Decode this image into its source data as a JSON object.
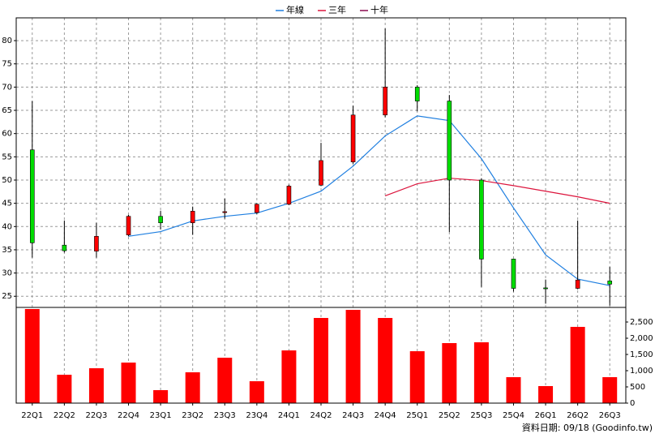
{
  "chart_data": {
    "type": "candlestick",
    "categories": [
      "22Q1",
      "22Q2",
      "22Q3",
      "22Q4",
      "23Q1",
      "23Q2",
      "23Q3",
      "23Q4",
      "24Q1",
      "24Q2",
      "24Q3",
      "24Q4",
      "25Q1",
      "25Q2",
      "25Q3",
      "25Q4",
      "26Q1",
      "26Q2",
      "26Q3"
    ],
    "open": [
      56.5,
      36,
      34.7,
      38.2,
      42.2,
      40.8,
      43,
      43,
      44.8,
      48.9,
      53.9,
      64,
      70,
      67,
      50,
      33,
      26.8,
      26.7,
      28.3
    ],
    "high": [
      67,
      41.3,
      40.8,
      42.5,
      43.4,
      44.3,
      46,
      45,
      49,
      58,
      66,
      82.6,
      70.4,
      68.3,
      50.4,
      33,
      28.6,
      41.3,
      31.3
    ],
    "low": [
      33.3,
      34.4,
      33.3,
      37.9,
      39.4,
      38.2,
      41.7,
      42.7,
      44.6,
      48.7,
      53.5,
      63.5,
      64.8,
      38.8,
      27,
      26,
      23.4,
      26.5,
      23
    ],
    "close": [
      36.5,
      34.8,
      37.9,
      42.2,
      40.8,
      43.3,
      43.2,
      44.8,
      48.7,
      54.2,
      64,
      70,
      67,
      50,
      33,
      26.7,
      26.6,
      28.5,
      27.6
    ],
    "up_color": "#ff0000",
    "down_color": "#00dd00",
    "series": [
      {
        "name": "年線",
        "color": "#1f7fe0",
        "values": [
          null,
          null,
          null,
          37.9,
          38.9,
          41.2,
          42.2,
          42.9,
          45,
          47.6,
          53,
          59.5,
          63.8,
          62.8,
          54.6,
          44,
          33.9,
          28.7,
          27.3
        ]
      },
      {
        "name": "三年",
        "color": "#dc143c",
        "values": [
          null,
          null,
          null,
          null,
          null,
          null,
          null,
          null,
          null,
          null,
          null,
          46.6,
          49.2,
          50.4,
          49.9,
          48.8,
          47.6,
          46.4,
          45
        ]
      },
      {
        "name": "十年",
        "color": "#8b0a50",
        "values": [
          null,
          null,
          null,
          null,
          null,
          null,
          null,
          null,
          null,
          null,
          null,
          null,
          null,
          null,
          null,
          null,
          null,
          null,
          null
        ]
      }
    ],
    "ylim": [
      22.6,
      84.9
    ],
    "yticks": [
      25,
      30,
      35,
      40,
      45,
      50,
      55,
      60,
      65,
      70,
      75,
      80
    ],
    "grid": true,
    "volume": {
      "color": "#ff0000",
      "values": [
        2900,
        875,
        1075,
        1250,
        400,
        950,
        1400,
        675,
        1625,
        2625,
        2875,
        2625,
        1600,
        1850,
        1875,
        800,
        525,
        2350,
        800
      ],
      "ylim": [
        0,
        2950
      ],
      "yticks": [
        0,
        500,
        {
          "value": 1000,
          "label": "1,000"
        },
        {
          "value": 1500,
          "label": "1,500"
        },
        {
          "value": 2000,
          "label": "2,000"
        },
        {
          "value": 2500,
          "label": "2,500"
        }
      ]
    },
    "note": "資料日期: 09/18 (Goodinfo.tw)"
  }
}
